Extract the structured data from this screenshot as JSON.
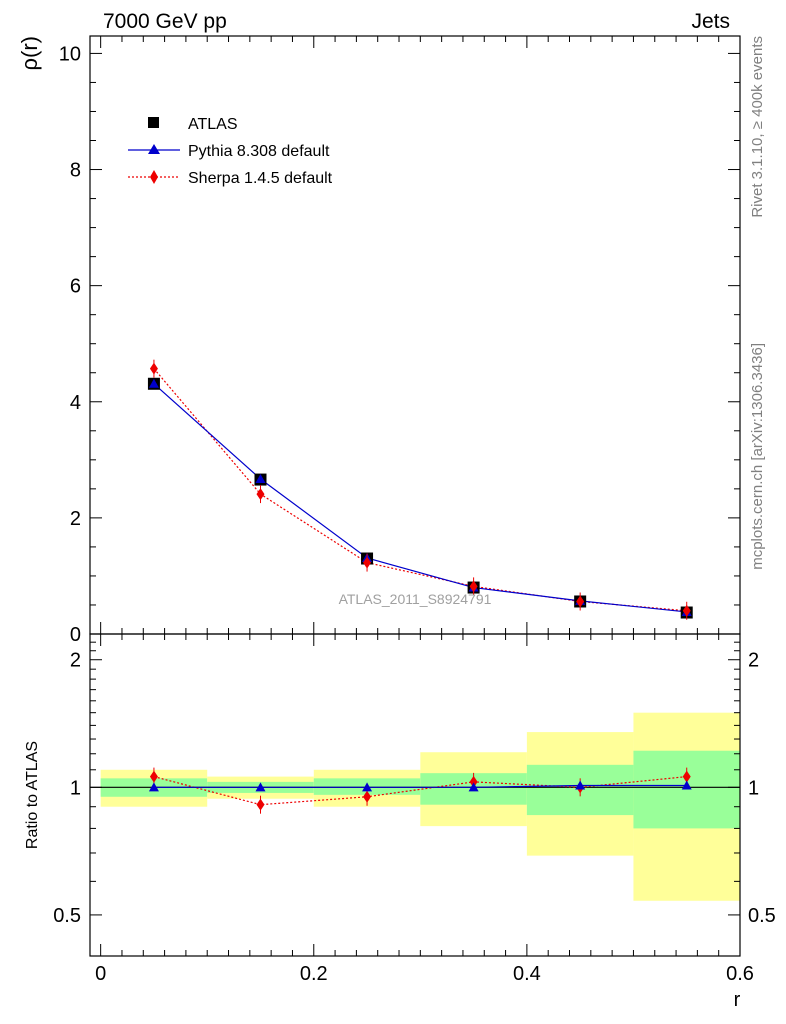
{
  "header": {
    "left_title": "7000 GeV pp",
    "right_title": "Jets",
    "side_text_top": "Rivet 3.1.10, ≥ 400k events",
    "side_text_bottom": "mcplots.cern.ch [arXiv:1306.3436]"
  },
  "colors": {
    "atlas": "#000000",
    "pythia": "#0000cc",
    "sherpa": "#ee0000",
    "band_inner": "#99ff99",
    "band_outer": "#ffff99",
    "side_text": "#808080",
    "watermark": "#a0a0a0"
  },
  "chart_data": [
    {
      "type": "line",
      "id": "main",
      "ylabel": "ρ(r)",
      "watermark": "ATLAS_2011_S8924791",
      "xlim": [
        -0.01,
        0.6
      ],
      "ylim": [
        0,
        10.3
      ],
      "yticks": [
        0,
        2,
        4,
        6,
        8,
        10
      ],
      "ytick_labels": [
        "0",
        "2",
        "4",
        "6",
        "8",
        "10"
      ],
      "x": [
        0.05,
        0.15,
        0.25,
        0.35,
        0.45,
        0.55
      ],
      "series": [
        {
          "name": "ATLAS",
          "marker": "square",
          "values": [
            4.31,
            2.66,
            1.3,
            0.8,
            0.56,
            0.37
          ]
        },
        {
          "name": "Pythia 8.308 default",
          "marker": "triangle",
          "line": "solid",
          "values": [
            4.31,
            2.67,
            1.31,
            0.8,
            0.57,
            0.38
          ]
        },
        {
          "name": "Sherpa 1.4.5 default",
          "marker": "diamond",
          "line": "dotted",
          "values": [
            4.57,
            2.41,
            1.23,
            0.82,
            0.56,
            0.4
          ]
        }
      ],
      "legend": [
        "ATLAS",
        "Pythia 8.308 default",
        "Sherpa 1.4.5 default"
      ]
    },
    {
      "type": "line",
      "id": "ratio",
      "ylabel": "Ratio to ATLAS",
      "xlabel": "r",
      "xlim": [
        -0.01,
        0.6
      ],
      "ylim": [
        0.4,
        2.3
      ],
      "yticks": [
        0.5,
        1,
        2
      ],
      "ytick_labels": [
        "0.5",
        "1",
        "2"
      ],
      "xticks": [
        0,
        0.2,
        0.4,
        0.6
      ],
      "xtick_labels": [
        "0",
        "0.2",
        "0.4",
        "0.6"
      ],
      "x": [
        0.05,
        0.15,
        0.25,
        0.35,
        0.45,
        0.55
      ],
      "bins": [
        [
          0.0,
          0.1
        ],
        [
          0.1,
          0.2
        ],
        [
          0.2,
          0.3
        ],
        [
          0.3,
          0.4
        ],
        [
          0.4,
          0.5
        ],
        [
          0.5,
          0.6
        ]
      ],
      "band_inner": [
        [
          0.95,
          1.05
        ],
        [
          0.97,
          1.03
        ],
        [
          0.96,
          1.05
        ],
        [
          0.91,
          1.08
        ],
        [
          0.86,
          1.13
        ],
        [
          0.8,
          1.22
        ]
      ],
      "band_outer": [
        [
          0.9,
          1.1
        ],
        [
          0.94,
          1.06
        ],
        [
          0.9,
          1.1
        ],
        [
          0.81,
          1.21
        ],
        [
          0.69,
          1.35
        ],
        [
          0.54,
          1.5
        ]
      ],
      "series": [
        {
          "name": "Pythia 8.308 default",
          "values": [
            1.0,
            1.0,
            1.0,
            1.0,
            1.01,
            1.01
          ]
        },
        {
          "name": "Sherpa 1.4.5 default",
          "values": [
            1.06,
            0.91,
            0.95,
            1.03,
            1.0,
            1.06
          ]
        }
      ]
    }
  ]
}
